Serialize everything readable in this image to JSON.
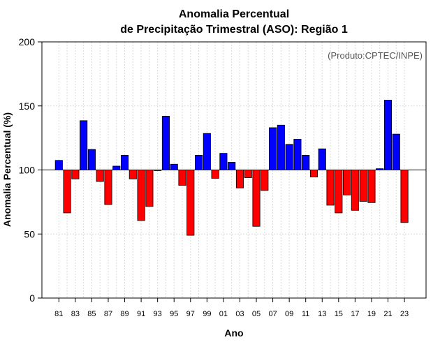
{
  "chart_data": {
    "type": "bar",
    "title": "Anomalia Percentual",
    "subtitle": "de Precipitação Trimestral (ASO): Região 1",
    "source_note": "(Produto:CPTEC/INPE)",
    "xlabel": "Ano",
    "ylabel": "Anomalia Percentual (%)",
    "ylim": [
      0,
      200
    ],
    "yticks": [
      0,
      50,
      100,
      150,
      200
    ],
    "baseline": 100,
    "grid": true,
    "colors": {
      "above": "#0000ff",
      "below": "#ff0000",
      "outline": "#000000",
      "grid": "#d9d9d9"
    },
    "xtick_labels": [
      "81",
      "83",
      "85",
      "87",
      "89",
      "91",
      "93",
      "95",
      "97",
      "99",
      "01",
      "03",
      "05",
      "07",
      "09",
      "11",
      "13",
      "15",
      "17",
      "19",
      "21",
      "23"
    ],
    "categories": [
      "1981",
      "1982",
      "1983",
      "1984",
      "1985",
      "1986",
      "1987",
      "1988",
      "1989",
      "1990",
      "1991",
      "1992",
      "1993",
      "1994",
      "1995",
      "1996",
      "1997",
      "1998",
      "1999",
      "2000",
      "2001",
      "2002",
      "2003",
      "2004",
      "2005",
      "2006",
      "2007",
      "2008",
      "2009",
      "2010",
      "2011",
      "2012",
      "2013",
      "2014",
      "2015",
      "2016",
      "2017",
      "2018",
      "2019",
      "2020",
      "2021",
      "2022",
      "2023"
    ],
    "values": [
      107.5,
      66.5,
      93,
      138.5,
      116,
      91,
      73,
      103,
      111.5,
      93,
      60.5,
      71.5,
      99.5,
      142,
      104.5,
      88,
      49,
      111.5,
      128.5,
      93.5,
      113,
      106,
      86,
      94,
      56,
      84,
      133,
      135,
      120,
      124,
      111.5,
      94.5,
      116.5,
      72.5,
      66.5,
      80.5,
      68.5,
      75.5,
      74.5,
      101,
      154.5,
      128,
      59
    ]
  }
}
